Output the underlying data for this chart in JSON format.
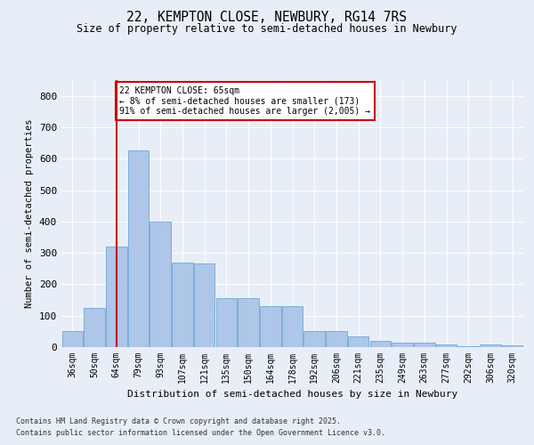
{
  "title1": "22, KEMPTON CLOSE, NEWBURY, RG14 7RS",
  "title2": "Size of property relative to semi-detached houses in Newbury",
  "xlabel": "Distribution of semi-detached houses by size in Newbury",
  "ylabel": "Number of semi-detached properties",
  "categories": [
    "36sqm",
    "50sqm",
    "64sqm",
    "79sqm",
    "93sqm",
    "107sqm",
    "121sqm",
    "135sqm",
    "150sqm",
    "164sqm",
    "178sqm",
    "192sqm",
    "206sqm",
    "221sqm",
    "235sqm",
    "249sqm",
    "263sqm",
    "277sqm",
    "292sqm",
    "306sqm",
    "320sqm"
  ],
  "values": [
    50,
    125,
    320,
    625,
    400,
    270,
    265,
    155,
    155,
    130,
    130,
    50,
    50,
    35,
    20,
    15,
    15,
    8,
    3,
    8,
    5
  ],
  "bar_color": "#aec6e8",
  "bar_edge_color": "#5a9fd4",
  "red_line_index": 2,
  "annotation_title": "22 KEMPTON CLOSE: 65sqm",
  "annotation_line1": "← 8% of semi-detached houses are smaller (173)",
  "annotation_line2": "91% of semi-detached houses are larger (2,005) →",
  "ylim": [
    0,
    850
  ],
  "yticks": [
    0,
    100,
    200,
    300,
    400,
    500,
    600,
    700,
    800
  ],
  "footer1": "Contains HM Land Registry data © Crown copyright and database right 2025.",
  "footer2": "Contains public sector information licensed under the Open Government Licence v3.0.",
  "bg_color": "#e8eef7",
  "plot_bg_color": "#e8eef7",
  "grid_color": "#ffffff",
  "annotation_box_color": "#cc0000"
}
